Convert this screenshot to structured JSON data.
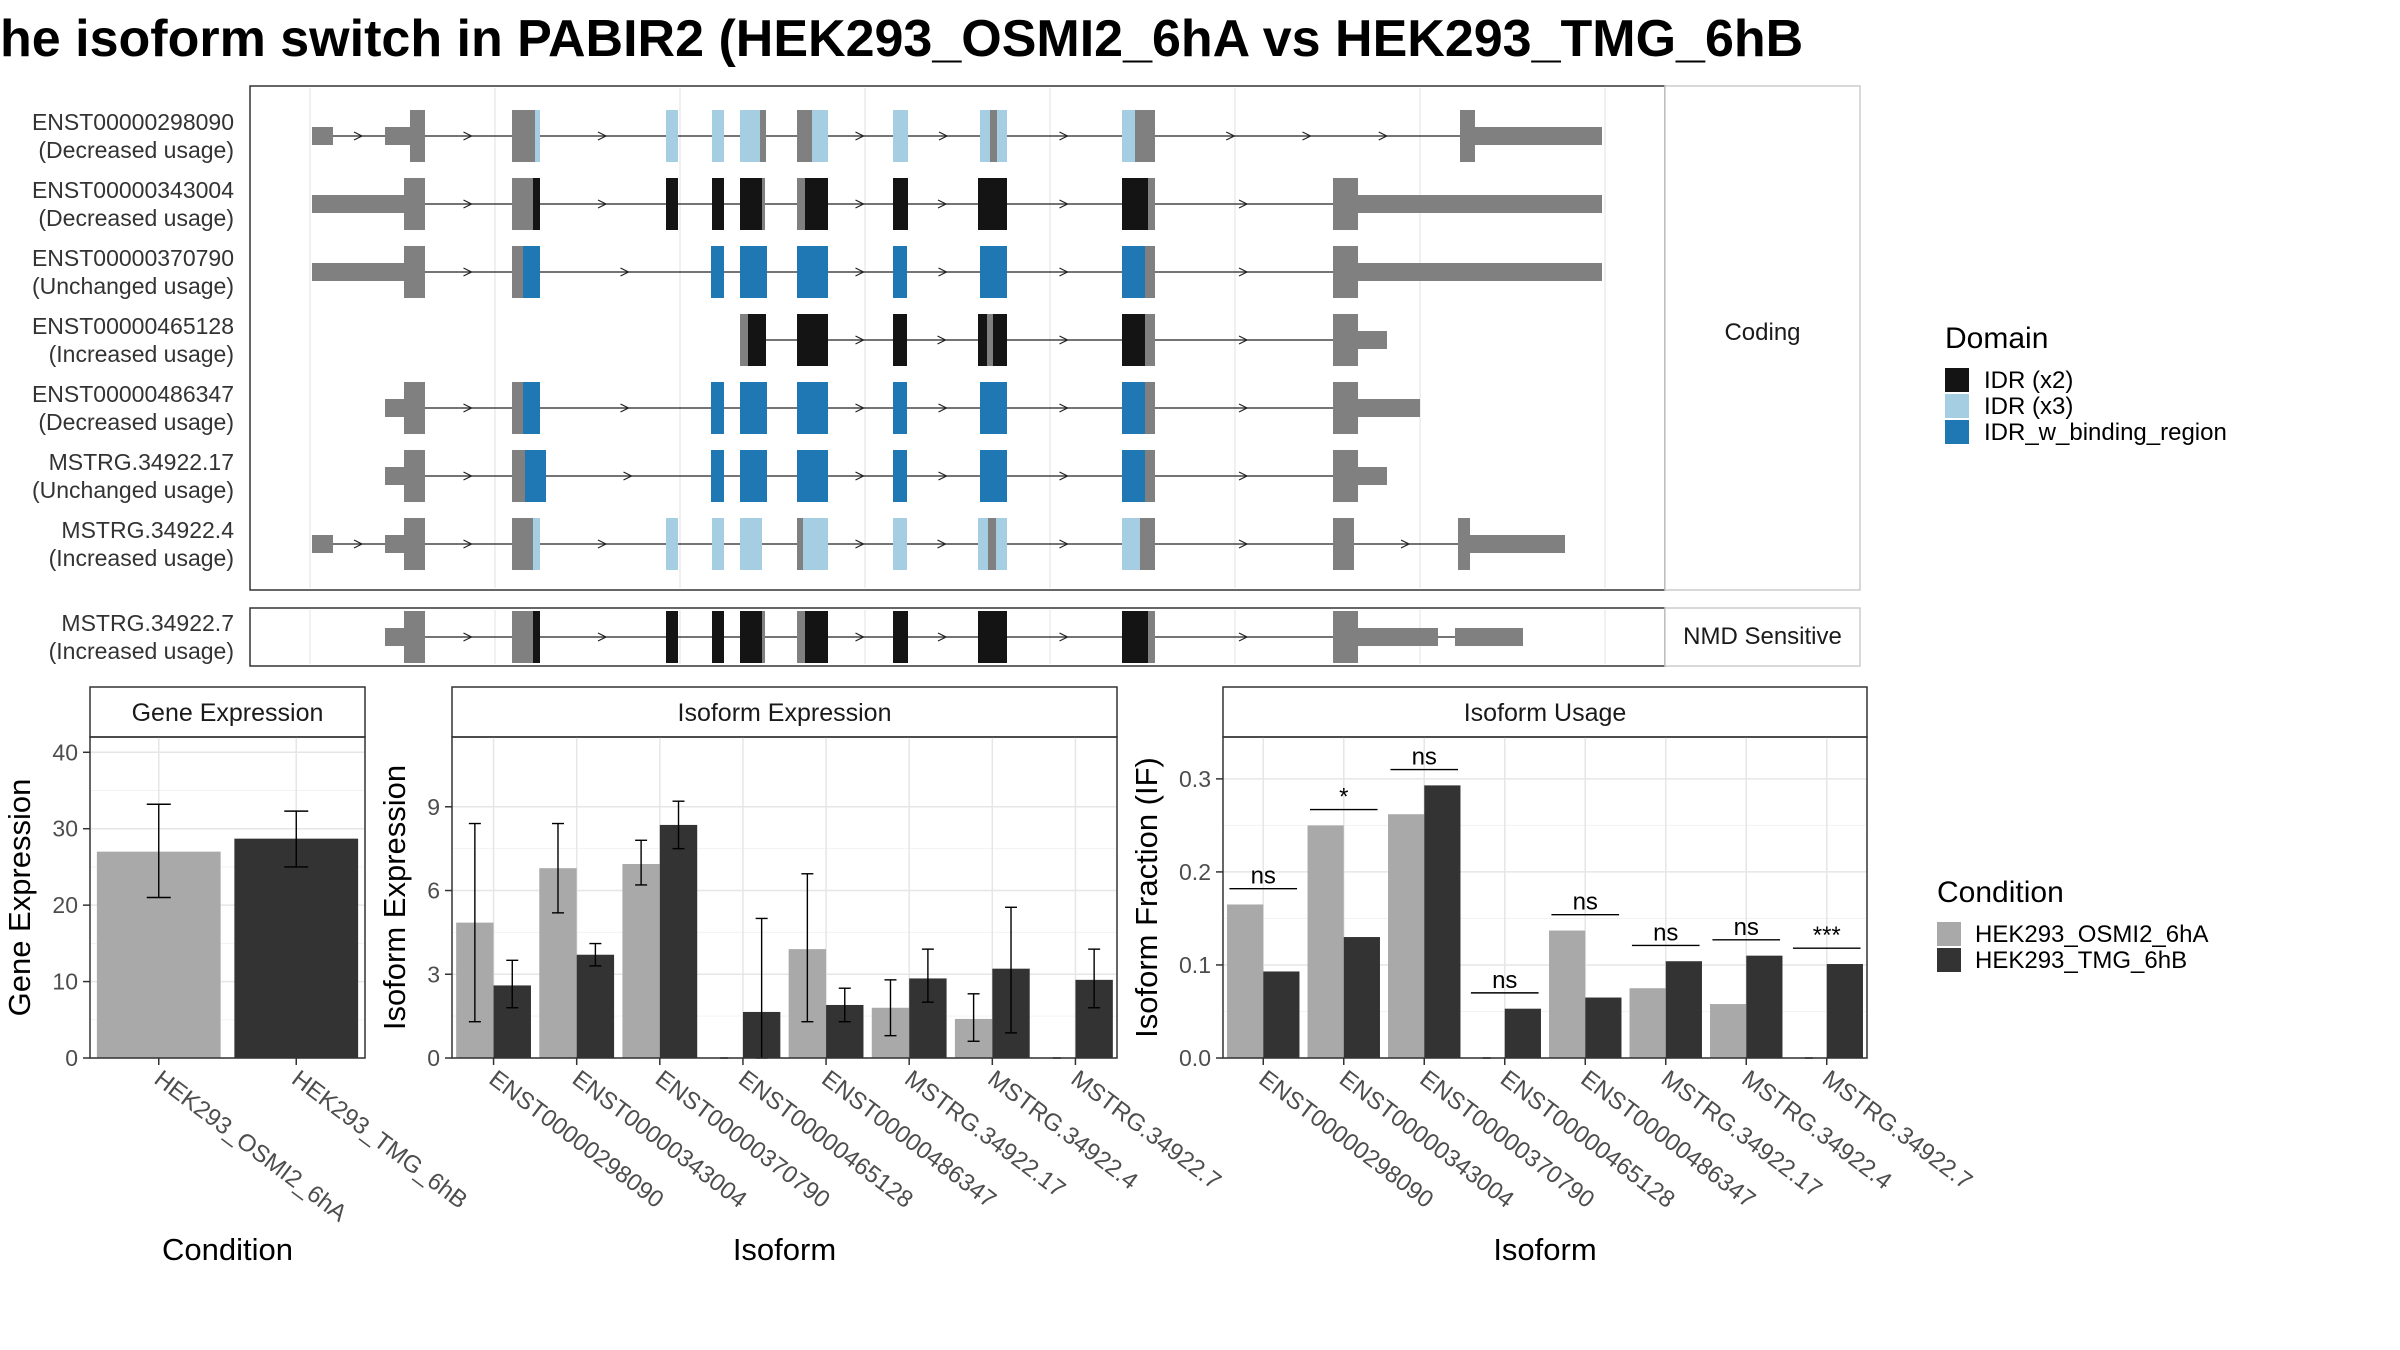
{
  "title": "he isoform switch in PABIR2 (HEK293_OSMI2_6hA vs HEK293_TMG_6hB",
  "colors": {
    "cond_a": "#A9A9A9",
    "cond_b": "#333333",
    "utr": "#808080",
    "idr_x2": "#141414",
    "idr_x3": "#A6CEE3",
    "idr_bind": "#1F78B4"
  },
  "structure": {
    "panels": [
      "Coding",
      "NMD Sensitive"
    ],
    "isoforms": [
      {
        "id": "ENST00000298090",
        "usage": "(Decreased usage)",
        "panel": "Coding"
      },
      {
        "id": "ENST00000343004",
        "usage": "(Decreased usage)",
        "panel": "Coding"
      },
      {
        "id": "ENST00000370790",
        "usage": "(Unchanged usage)",
        "panel": "Coding"
      },
      {
        "id": "ENST00000465128",
        "usage": "(Increased usage)",
        "panel": "Coding"
      },
      {
        "id": "ENST00000486347",
        "usage": "(Decreased usage)",
        "panel": "Coding"
      },
      {
        "id": "MSTRG.34922.17",
        "usage": "(Unchanged usage)",
        "panel": "Coding"
      },
      {
        "id": "MSTRG.34922.4",
        "usage": "(Increased usage)",
        "panel": "Coding"
      },
      {
        "id": "MSTRG.34922.7",
        "usage": "(Increased usage)",
        "panel": "NMD Sensitive"
      }
    ],
    "legend": {
      "title": "Domain",
      "items": [
        {
          "label": "IDR (x2)",
          "color": "#141414"
        },
        {
          "label": "IDR (x3)",
          "color": "#A6CEE3"
        },
        {
          "label": "IDR_w_binding_region",
          "color": "#1F78B4"
        }
      ]
    }
  },
  "chart_data": [
    {
      "type": "bar",
      "title": "Gene Expression",
      "xlabel": "Condition",
      "ylabel": "Gene Expression",
      "ylim": [
        0,
        42
      ],
      "yticks": [
        0,
        10,
        20,
        30,
        40
      ],
      "categories": [
        "HEK293_OSMI2_6hA",
        "HEK293_TMG_6hB"
      ],
      "values": [
        27.0,
        28.7
      ],
      "errors": [
        [
          21.0,
          33.2
        ],
        [
          25.0,
          32.3
        ]
      ]
    },
    {
      "type": "bar",
      "title": "Isoform Expression",
      "xlabel": "Isoform",
      "ylabel": "Isoform Expression",
      "ylim": [
        0,
        11.5
      ],
      "yticks": [
        0,
        3,
        6,
        9
      ],
      "categories": [
        "ENST00000298090",
        "ENST00000343004",
        "ENST00000370790",
        "ENST00000465128",
        "ENST00000486347",
        "MSTRG.34922.17",
        "MSTRG.34922.4",
        "MSTRG.34922.7"
      ],
      "series": [
        {
          "name": "HEK293_OSMI2_6hA",
          "values": [
            4.85,
            6.8,
            6.95,
            0,
            3.9,
            1.8,
            1.4,
            0
          ],
          "errors": [
            [
              1.3,
              8.4
            ],
            [
              5.2,
              8.4
            ],
            [
              6.2,
              7.8
            ],
            [
              0,
              0
            ],
            [
              1.3,
              6.6
            ],
            [
              0.8,
              2.8
            ],
            [
              0.6,
              2.3
            ],
            [
              0,
              0
            ]
          ]
        },
        {
          "name": "HEK293_TMG_6hB",
          "values": [
            2.6,
            3.7,
            8.35,
            1.65,
            1.9,
            2.85,
            3.2,
            2.8
          ],
          "errors": [
            [
              1.8,
              3.5
            ],
            [
              3.3,
              4.1
            ],
            [
              7.5,
              9.2
            ],
            [
              0,
              5.0
            ],
            [
              1.3,
              2.5
            ],
            [
              2.0,
              3.9
            ],
            [
              0.9,
              5.4
            ],
            [
              1.8,
              3.9
            ]
          ]
        }
      ]
    },
    {
      "type": "bar",
      "title": "Isoform Usage",
      "xlabel": "Isoform",
      "ylabel": "Isoform Fraction (IF)",
      "ylim": [
        0,
        0.345
      ],
      "yticks": [
        0.0,
        0.1,
        0.2,
        0.3
      ],
      "ytick_labels": [
        "0.0",
        "0.1",
        "0.2",
        "0.3"
      ],
      "categories": [
        "ENST00000298090",
        "ENST00000343004",
        "ENST00000370790",
        "ENST00000465128",
        "ENST00000486347",
        "MSTRG.34922.17",
        "MSTRG.34922.4",
        "MSTRG.34922.7"
      ],
      "series": [
        {
          "name": "HEK293_OSMI2_6hA",
          "values": [
            0.165,
            0.25,
            0.262,
            0,
            0.137,
            0.075,
            0.058,
            0
          ]
        },
        {
          "name": "HEK293_TMG_6hB",
          "values": [
            0.093,
            0.13,
            0.293,
            0.053,
            0.065,
            0.104,
            0.11,
            0.101
          ]
        }
      ],
      "significance": [
        "ns",
        "*",
        "ns",
        "ns",
        "ns",
        "ns",
        "ns",
        "***"
      ],
      "sig_levels": [
        0.182,
        0.267,
        0.31,
        0.07,
        0.154,
        0.121,
        0.127,
        0.118
      ]
    }
  ],
  "condition_legend": {
    "title": "Condition",
    "items": [
      {
        "label": "HEK293_OSMI2_6hA",
        "color": "#A9A9A9"
      },
      {
        "label": "HEK293_TMG_6hB",
        "color": "#333333"
      }
    ]
  }
}
